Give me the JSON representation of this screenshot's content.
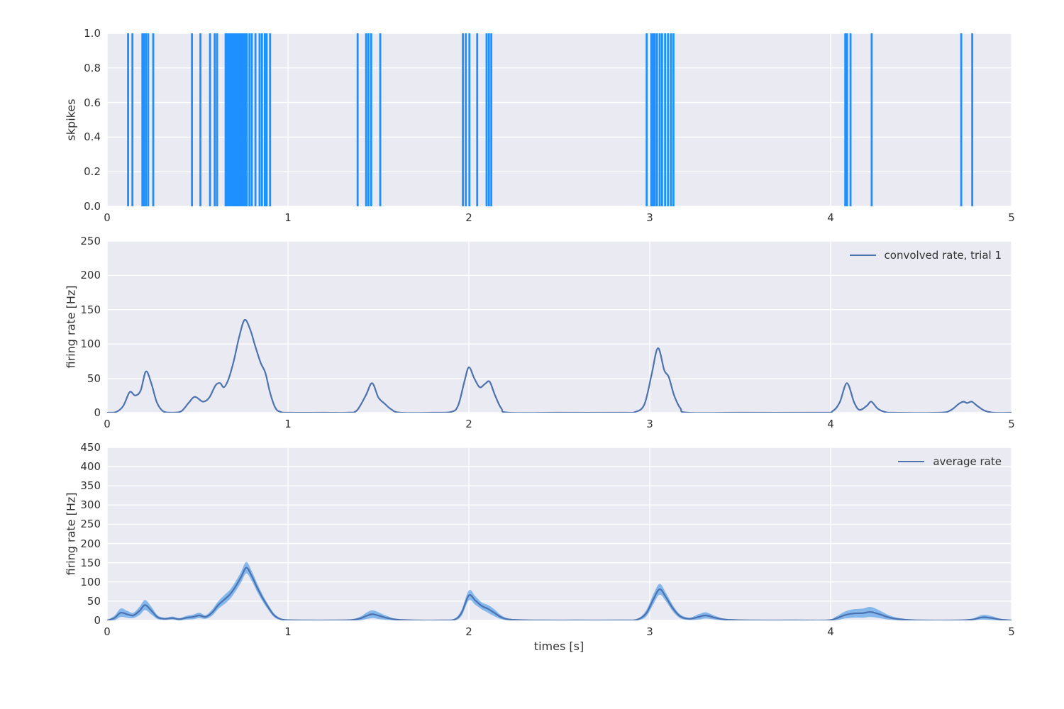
{
  "figure": {
    "background": "#ffffff",
    "axes_background": "#eaeaf2",
    "grid_color": "#ffffff",
    "text_color": "#333333"
  },
  "chart_data": [
    {
      "type": "scatter",
      "subtype": "spike-raster",
      "ylabel": "skpikes",
      "xlim": [
        0,
        5
      ],
      "ylim": [
        0,
        1
      ],
      "grid": true,
      "spike_color": "#1e90ff",
      "xticks": [
        {
          "v": 0,
          "label": "0"
        },
        {
          "v": 1,
          "label": "1"
        },
        {
          "v": 2,
          "label": "2"
        },
        {
          "v": 3,
          "label": "3"
        },
        {
          "v": 4,
          "label": "4"
        },
        {
          "v": 5,
          "label": "5"
        }
      ],
      "yticks": [
        {
          "v": 0,
          "label": "0.0"
        },
        {
          "v": 0.2,
          "label": "0.2"
        },
        {
          "v": 0.4,
          "label": "0.4"
        },
        {
          "v": 0.6,
          "label": "0.6"
        },
        {
          "v": 0.8,
          "label": "0.8"
        },
        {
          "v": 1,
          "label": "1.0"
        }
      ],
      "spike_times": [
        0.116,
        0.14,
        0.195,
        0.203,
        0.214,
        0.227,
        0.255,
        0.469,
        0.516,
        0.569,
        0.595,
        0.608,
        0.655,
        0.663,
        0.671,
        0.682,
        0.69,
        0.698,
        0.706,
        0.715,
        0.724,
        0.732,
        0.74,
        0.748,
        0.756,
        0.764,
        0.772,
        0.787,
        0.8,
        0.82,
        0.843,
        0.856,
        0.872,
        0.882,
        0.901,
        1.385,
        1.432,
        1.445,
        1.46,
        1.51,
        1.967,
        1.983,
        2.003,
        2.046,
        2.098,
        2.111,
        2.124,
        2.983,
        3.008,
        3.018,
        3.028,
        3.04,
        3.055,
        3.068,
        3.085,
        3.101,
        3.117,
        3.131,
        4.081,
        4.091,
        4.11,
        4.227,
        4.722,
        4.783
      ]
    },
    {
      "type": "line",
      "legend": "convolved rate, trial 1",
      "legend_position": "upper right",
      "ylabel": "firing rate [Hz]",
      "xlim": [
        0,
        5
      ],
      "ylim": [
        0,
        250
      ],
      "grid": true,
      "line_color": "#4c72b0",
      "xticks": [
        {
          "v": 0,
          "label": "0"
        },
        {
          "v": 1,
          "label": "1"
        },
        {
          "v": 2,
          "label": "2"
        },
        {
          "v": 3,
          "label": "3"
        },
        {
          "v": 4,
          "label": "4"
        },
        {
          "v": 5,
          "label": "5"
        }
      ],
      "yticks": [
        {
          "v": 0,
          "label": "0"
        },
        {
          "v": 50,
          "label": "50"
        },
        {
          "v": 100,
          "label": "100"
        },
        {
          "v": 150,
          "label": "150"
        },
        {
          "v": 200,
          "label": "200"
        },
        {
          "v": 250,
          "label": "250"
        }
      ],
      "x": [
        0,
        0.05,
        0.09,
        0.125,
        0.155,
        0.185,
        0.215,
        0.245,
        0.275,
        0.31,
        0.36,
        0.41,
        0.45,
        0.485,
        0.53,
        0.565,
        0.6,
        0.625,
        0.645,
        0.67,
        0.7,
        0.73,
        0.76,
        0.79,
        0.82,
        0.85,
        0.875,
        0.9,
        0.93,
        0.96,
        1.0,
        1.2,
        1.33,
        1.38,
        1.43,
        1.465,
        1.5,
        1.535,
        1.57,
        1.62,
        1.8,
        1.9,
        1.94,
        1.975,
        2.0,
        2.03,
        2.06,
        2.09,
        2.115,
        2.145,
        2.18,
        2.22,
        2.5,
        2.85,
        2.92,
        2.97,
        3.01,
        3.045,
        3.08,
        3.105,
        3.135,
        3.17,
        3.21,
        3.5,
        3.95,
        4.01,
        4.05,
        4.09,
        4.13,
        4.16,
        4.2,
        4.225,
        4.26,
        4.3,
        4.35,
        4.6,
        4.66,
        4.71,
        4.735,
        4.755,
        4.78,
        4.81,
        4.85,
        4.9,
        5
      ],
      "y": [
        0,
        1,
        10,
        30,
        25,
        32,
        60,
        42,
        15,
        2,
        0,
        2,
        14,
        23,
        16,
        22,
        40,
        43,
        37,
        48,
        75,
        110,
        135,
        122,
        96,
        72,
        58,
        30,
        7,
        1,
        0,
        0,
        0,
        3,
        25,
        43,
        22,
        13,
        5,
        0,
        0,
        1,
        10,
        45,
        66,
        50,
        37,
        42,
        45,
        25,
        6,
        0,
        0,
        0,
        1,
        12,
        55,
        94,
        62,
        52,
        25,
        6,
        0,
        0,
        0,
        2,
        15,
        43,
        15,
        4,
        10,
        16,
        6,
        1,
        0,
        0,
        3,
        13,
        16,
        14,
        16,
        10,
        3,
        0,
        0
      ]
    },
    {
      "type": "area",
      "legend": "average rate",
      "legend_position": "upper right",
      "ylabel": "firing rate [Hz]",
      "xlabel": "times [s]",
      "xlim": [
        0,
        5
      ],
      "ylim": [
        0,
        450
      ],
      "grid": true,
      "line_color": "#4c72b0",
      "band_color": "#4d9be8",
      "band_opacity": 0.65,
      "xticks": [
        {
          "v": 0,
          "label": "0"
        },
        {
          "v": 1,
          "label": "1"
        },
        {
          "v": 2,
          "label": "2"
        },
        {
          "v": 3,
          "label": "3"
        },
        {
          "v": 4,
          "label": "4"
        },
        {
          "v": 5,
          "label": "5"
        }
      ],
      "yticks": [
        {
          "v": 0,
          "label": "0"
        },
        {
          "v": 50,
          "label": "50"
        },
        {
          "v": 100,
          "label": "100"
        },
        {
          "v": 150,
          "label": "150"
        },
        {
          "v": 200,
          "label": "200"
        },
        {
          "v": 250,
          "label": "250"
        },
        {
          "v": 300,
          "label": "300"
        },
        {
          "v": 350,
          "label": "350"
        },
        {
          "v": 400,
          "label": "400"
        },
        {
          "v": 450,
          "label": "450"
        }
      ],
      "x": [
        0,
        0.04,
        0.075,
        0.11,
        0.145,
        0.18,
        0.21,
        0.245,
        0.28,
        0.32,
        0.36,
        0.4,
        0.44,
        0.475,
        0.51,
        0.545,
        0.58,
        0.615,
        0.65,
        0.68,
        0.71,
        0.74,
        0.77,
        0.8,
        0.83,
        0.86,
        0.89,
        0.92,
        0.95,
        0.99,
        1.1,
        1.25,
        1.35,
        1.4,
        1.44,
        1.47,
        1.51,
        1.55,
        1.6,
        1.7,
        1.85,
        1.92,
        1.96,
        2.0,
        2.035,
        2.07,
        2.105,
        2.14,
        2.18,
        2.23,
        2.35,
        2.6,
        2.85,
        2.93,
        2.98,
        3.02,
        3.055,
        3.09,
        3.13,
        3.17,
        3.22,
        3.27,
        3.31,
        3.36,
        3.42,
        3.55,
        3.8,
        3.98,
        4.03,
        4.08,
        4.13,
        4.18,
        4.22,
        4.27,
        4.32,
        4.38,
        4.5,
        4.7,
        4.78,
        4.84,
        4.89,
        4.94,
        5
      ],
      "mean": [
        0,
        6,
        20,
        16,
        13,
        25,
        40,
        25,
        8,
        4,
        6,
        3,
        7,
        9,
        13,
        9,
        20,
        40,
        55,
        68,
        88,
        112,
        137,
        115,
        85,
        58,
        35,
        15,
        5,
        1,
        0,
        0,
        1,
        5,
        13,
        16,
        11,
        6,
        2,
        0,
        0,
        2,
        20,
        65,
        52,
        38,
        30,
        20,
        8,
        2,
        0,
        0,
        0,
        2,
        18,
        55,
        81,
        60,
        30,
        10,
        4,
        9,
        13,
        7,
        2,
        0,
        0,
        0,
        5,
        14,
        18,
        19,
        22,
        16,
        8,
        3,
        0,
        0,
        2,
        8,
        6,
        2,
        0
      ],
      "band_halfwidth": [
        1,
        6,
        11,
        9,
        7,
        11,
        13,
        10,
        5,
        3,
        4,
        3,
        5,
        6,
        7,
        5,
        8,
        10,
        12,
        12,
        13,
        14,
        15,
        13,
        11,
        9,
        7,
        5,
        3,
        1,
        0.5,
        0.5,
        2,
        5,
        9,
        10,
        8,
        5,
        2,
        0.5,
        0.5,
        2,
        8,
        13,
        11,
        9,
        10,
        9,
        5,
        2,
        0.5,
        0.5,
        0.5,
        2,
        8,
        13,
        14,
        11,
        8,
        5,
        3,
        7,
        8,
        5,
        2,
        0.5,
        0.5,
        1,
        5,
        9,
        11,
        12,
        13,
        10,
        6,
        3,
        0.5,
        0.5,
        2,
        6,
        5,
        2,
        1
      ]
    }
  ]
}
